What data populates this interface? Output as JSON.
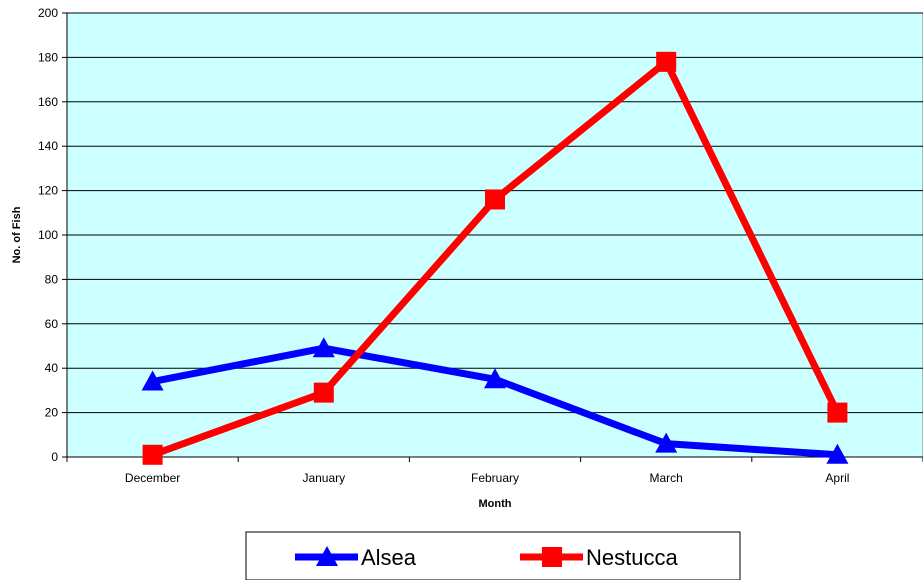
{
  "chart_data": {
    "type": "line",
    "xlabel": "Month",
    "ylabel": "No. of Fish",
    "categories": [
      "December",
      "January",
      "February",
      "March",
      "April"
    ],
    "ylim": [
      0,
      200
    ],
    "yticks": [
      0,
      20,
      40,
      60,
      80,
      100,
      120,
      140,
      160,
      180,
      200
    ],
    "grid": true,
    "plot_background": "#ccffff",
    "legend_position": "bottom",
    "series": [
      {
        "name": "Alsea",
        "values": [
          34,
          49,
          35,
          6,
          1
        ],
        "color": "#0000ff",
        "marker": "triangle"
      },
      {
        "name": "Nestucca",
        "values": [
          1,
          29,
          116,
          178,
          20
        ],
        "color": "#ff0000",
        "marker": "square"
      }
    ]
  }
}
